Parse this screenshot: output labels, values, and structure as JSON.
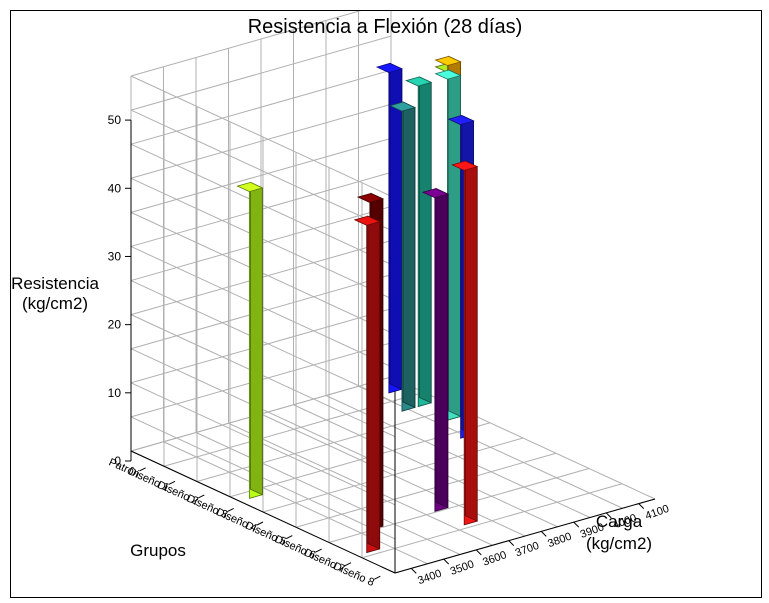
{
  "chart_data": {
    "type": "bar",
    "variant": "3d",
    "title": "Resistencia a Flexión (28 días)",
    "zlabel": [
      "Resistencia",
      "(kg/cm2)"
    ],
    "xlabel": "Grupos",
    "ylabel": [
      "Carga",
      "(kg/cm2)"
    ],
    "zlim": [
      0,
      55
    ],
    "z_ticks": [
      "0",
      "10",
      "20",
      "30",
      "40",
      "50"
    ],
    "groups": [
      "Patrón",
      "Diseño 1",
      "Diseño 2",
      "Diseño 3",
      "Diseño 4",
      "Diseño 5",
      "Diseño 6",
      "Diseño 7",
      "Diseño 8"
    ],
    "load_ticks": [
      "3400",
      "3500",
      "3600",
      "3700",
      "3800",
      "3900",
      "4000",
      "4100"
    ],
    "grid": true,
    "colors": [
      "#1414ff",
      "#20b89a",
      "#2a8a8a",
      "#c8ff10",
      "#9ad020",
      "#ffb000",
      "#40e0c0",
      "#1c1cf0",
      "#6a0080",
      "#b8ff1a",
      "#f01414",
      "#7a0000",
      "#cc1010"
    ],
    "bars": [
      {
        "group": "Patrón",
        "carga": 4100,
        "value": 47
      },
      {
        "group": "Diseño 1",
        "carga": 4100,
        "value": 47
      },
      {
        "group": "Diseño 1",
        "carga": 4050,
        "value": 44
      },
      {
        "group": "Diseño 2",
        "carga": 4100,
        "value": 52
      },
      {
        "group": "Diseño 2",
        "carga": 4100,
        "value": 51
      },
      {
        "group": "Diseño 2",
        "carga": 4100,
        "value": 52
      },
      {
        "group": "Diseño 2",
        "carga": 4100,
        "value": 50
      },
      {
        "group": "Diseño 3",
        "carga": 4050,
        "value": 46
      },
      {
        "group": "Diseño 6",
        "carga": 3700,
        "value": 46
      },
      {
        "group": "Diseño 3",
        "carga": 3400,
        "value": 45
      },
      {
        "group": "Diseño 7",
        "carga": 3700,
        "value": 52
      },
      {
        "group": "Diseño 6",
        "carga": 3500,
        "value": 48
      },
      {
        "group": "Diseño 7",
        "carga": 3400,
        "value": 48
      }
    ]
  }
}
